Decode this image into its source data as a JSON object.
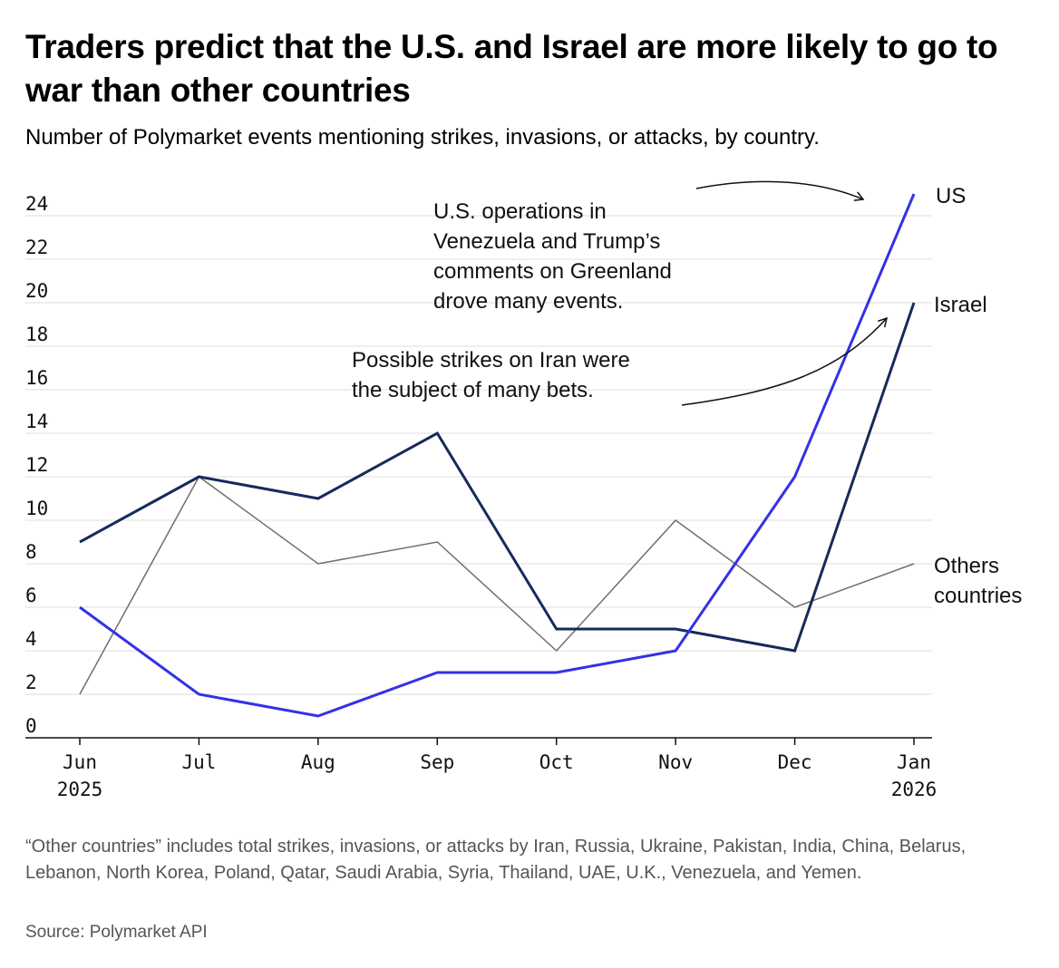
{
  "chart_data": {
    "type": "line",
    "title": "Traders predict that the U.S. and Israel are more likely to go to war than other countries",
    "subtitle": "Number of Polymarket events mentioning strikes, invasions, or attacks, by country.",
    "categories": [
      [
        "Jun",
        "2025"
      ],
      [
        "Jul"
      ],
      [
        "Aug"
      ],
      [
        "Sep"
      ],
      [
        "Oct"
      ],
      [
        "Nov"
      ],
      [
        "Dec"
      ],
      [
        "Jan",
        "2026"
      ]
    ],
    "yticks": [
      0,
      2,
      4,
      6,
      8,
      10,
      12,
      14,
      16,
      18,
      20,
      22,
      24
    ],
    "ylim": [
      0,
      25
    ],
    "grid": true,
    "series": [
      {
        "name": "Others countries",
        "label_lines": [
          "Others",
          "countries"
        ],
        "color": "#6e6e6e",
        "values": [
          2,
          12,
          8,
          9,
          4,
          10,
          6,
          8
        ]
      },
      {
        "name": "Israel",
        "label_lines": [
          "Israel"
        ],
        "color": "#162a5c",
        "values": [
          9,
          12,
          11,
          14,
          5,
          5,
          4,
          20
        ]
      },
      {
        "name": "US",
        "label_lines": [
          "US"
        ],
        "color": "#3232e6",
        "values": [
          6,
          2,
          1,
          3,
          3,
          4,
          12,
          25
        ]
      }
    ],
    "annotations": [
      {
        "target": "US",
        "lines": [
          "U.S. operations in",
          "Venezuela and Trump’s",
          "comments on Greenland",
          "drove many events."
        ]
      },
      {
        "target": "Israel",
        "lines": [
          "Possible strikes on Iran were",
          "the subject of many bets."
        ]
      }
    ]
  },
  "footnote": "“Other countries” includes total strikes, invasions, or attacks by Iran, Russia, Ukraine, Pakistan, India, China, Belarus, Lebanon, North Korea, Poland, Qatar, Saudi Arabia, Syria, Thailand, UAE, U.K., Venezuela, and Yemen.",
  "source": "Source: Polymarket API",
  "colors": {
    "grid": "#dddddd",
    "axis": "#111111",
    "text": "#111111",
    "note": "#555555"
  }
}
